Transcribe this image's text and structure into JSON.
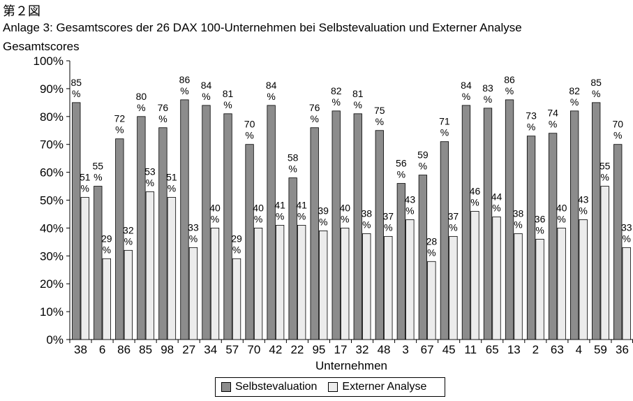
{
  "figure_label": "第２図",
  "chart_data": {
    "type": "bar",
    "title": "Anlage 3: Gesamtscores der 26 DAX 100-Unternehmen bei Selbstevaluation und Externer Analyse",
    "ylabel": "Gesamtscores",
    "xlabel": "Unternehmen",
    "ylim": [
      0,
      100
    ],
    "yticks": [
      "0%",
      "10%",
      "20%",
      "30%",
      "40%",
      "50%",
      "60%",
      "70%",
      "80%",
      "90%",
      "100%"
    ],
    "categories": [
      "38",
      "6",
      "86",
      "85",
      "98",
      "27",
      "34",
      "57",
      "70",
      "42",
      "22",
      "95",
      "17",
      "32",
      "48",
      "3",
      "67",
      "45",
      "11",
      "65",
      "13",
      "2",
      "63",
      "4",
      "59",
      "36"
    ],
    "series": [
      {
        "name": "Selbstevaluation",
        "color": "#8c8c8c",
        "values": [
          85,
          55,
          72,
          80,
          76,
          86,
          84,
          81,
          70,
          84,
          58,
          76,
          82,
          81,
          75,
          56,
          59,
          71,
          84,
          83,
          86,
          73,
          74,
          82,
          85,
          70
        ]
      },
      {
        "name": "Externer Analyse",
        "color": "#ececec",
        "values": [
          51,
          29,
          32,
          53,
          51,
          33,
          40,
          29,
          40,
          41,
          41,
          39,
          40,
          38,
          37,
          43,
          28,
          37,
          46,
          44,
          38,
          36,
          40,
          43,
          55,
          33
        ]
      }
    ],
    "legend_position": "bottom"
  }
}
